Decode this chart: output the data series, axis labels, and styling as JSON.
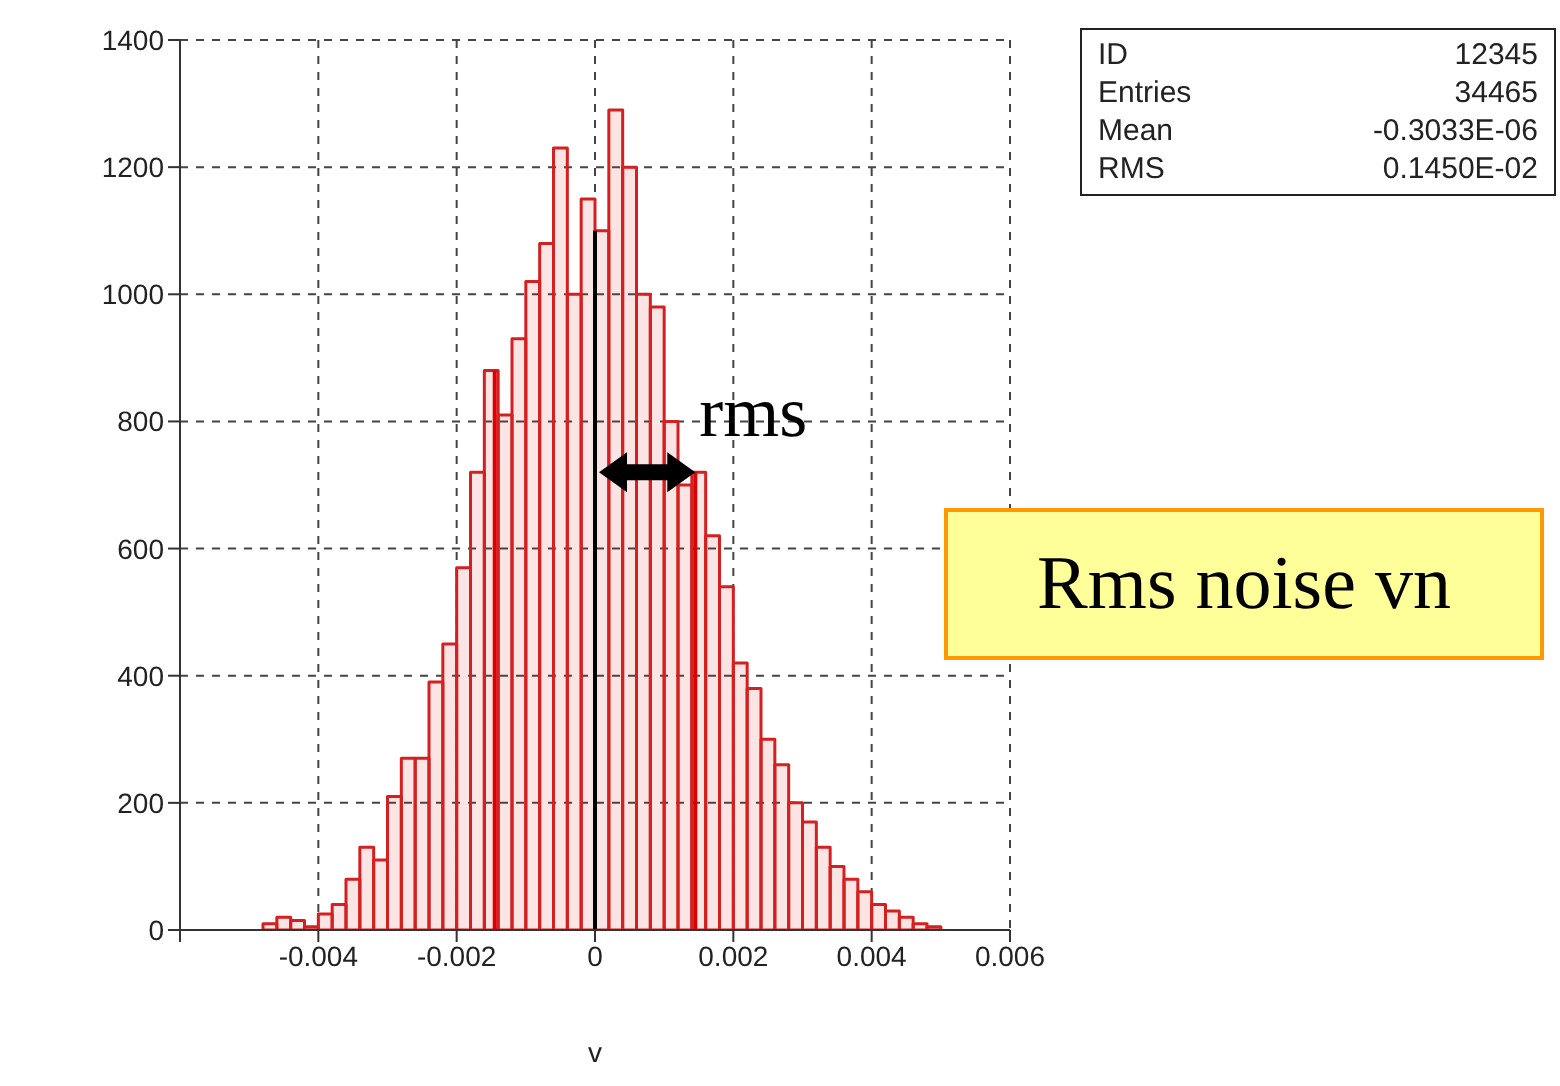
{
  "chart_data": {
    "type": "histogram",
    "xlabel": "v",
    "bins": [
      -0.0048,
      -0.0046,
      -0.0044,
      -0.0042,
      -0.004,
      -0.0038,
      -0.0036,
      -0.0034,
      -0.0032,
      -0.003,
      -0.0028,
      -0.0026,
      -0.0024,
      -0.0022,
      -0.002,
      -0.0018,
      -0.0016,
      -0.0014,
      -0.0012,
      -0.001,
      -0.0008,
      -0.0006,
      -0.0004,
      -0.0002,
      0,
      0.0002,
      0.0004,
      0.0006,
      0.0008,
      0.001,
      0.0012,
      0.0014,
      0.0016,
      0.0018,
      0.002,
      0.0022,
      0.0024,
      0.0026,
      0.0028,
      0.003,
      0.0032,
      0.0034,
      0.0036,
      0.0038,
      0.004,
      0.0042,
      0.0044,
      0.0046,
      0.0048,
      0.005
    ],
    "values": [
      10,
      20,
      15,
      5,
      25,
      40,
      80,
      130,
      110,
      210,
      270,
      270,
      390,
      450,
      570,
      720,
      880,
      810,
      930,
      1020,
      1080,
      1230,
      1000,
      1150,
      1100,
      1290,
      1200,
      1000,
      980,
      800,
      700,
      720,
      620,
      540,
      420,
      380,
      300,
      260,
      200,
      170,
      130,
      100,
      80,
      60,
      40,
      30,
      20,
      10,
      5
    ],
    "color": "#d42020",
    "xlim": [
      -0.006,
      0.006
    ],
    "xticks": [
      {
        "value": -0.006,
        "label": null
      },
      -0.004,
      -0.002,
      0,
      0.002,
      0.004,
      0.006
    ],
    "ylim": [
      0,
      1400
    ],
    "yticks": [
      0,
      200,
      400,
      600,
      800,
      1000,
      1200,
      1400
    ],
    "grid": true,
    "ref_lines": [
      {
        "axis": "x",
        "value": -0.00145,
        "color": "#dd0000"
      },
      {
        "axis": "x",
        "value": 0.00145,
        "color": "#dd0000"
      },
      {
        "axis": "x",
        "value": 0,
        "color": "#000000"
      }
    ],
    "annotations": [
      "ID",
      "12345",
      "Entries",
      "34465",
      "Mean",
      "-0.3033E-06",
      "RMS",
      "0.1450E-02",
      "Rms noise vn",
      {
        "text": "rms",
        "x": 0.00145,
        "y": 720
      }
    ]
  }
}
